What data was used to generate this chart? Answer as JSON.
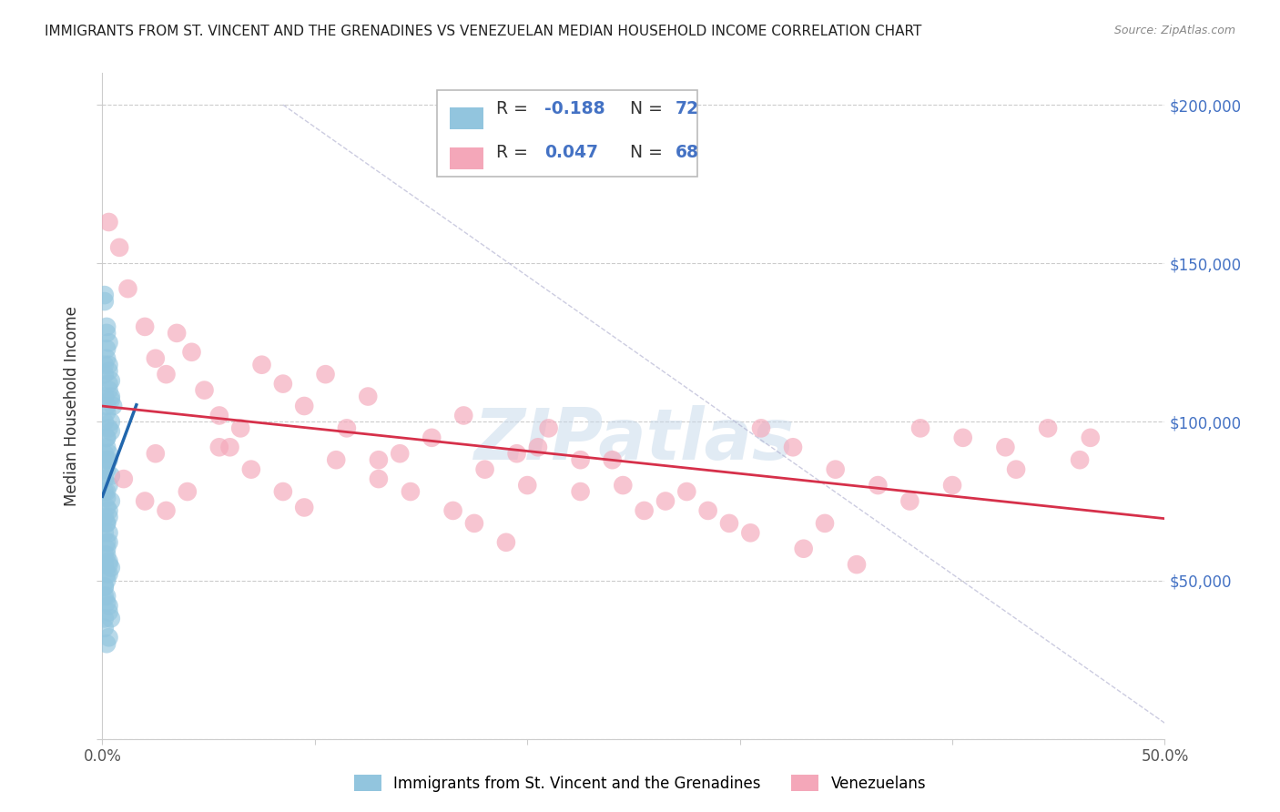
{
  "title": "IMMIGRANTS FROM ST. VINCENT AND THE GRENADINES VS VENEZUELAN MEDIAN HOUSEHOLD INCOME CORRELATION CHART",
  "source": "Source: ZipAtlas.com",
  "ylabel": "Median Household Income",
  "xlim": [
    0.0,
    0.5
  ],
  "ylim": [
    0,
    210000
  ],
  "xtick_positions": [
    0.0,
    0.5
  ],
  "xtick_labels": [
    "0.0%",
    "50.0%"
  ],
  "yticks": [
    0,
    50000,
    100000,
    150000,
    200000
  ],
  "ytick_labels": [
    "",
    "$50,000",
    "$100,000",
    "$150,000",
    "$200,000"
  ],
  "blue_R": -0.188,
  "blue_N": 72,
  "pink_R": 0.047,
  "pink_N": 68,
  "blue_color": "#92c5de",
  "pink_color": "#f4a7b9",
  "blue_line_color": "#2166ac",
  "pink_line_color": "#d6304a",
  "watermark": "ZIPatlas",
  "legend_label_blue": "Immigrants from St. Vincent and the Grenadines",
  "legend_label_pink": "Venezuelans",
  "blue_x": [
    0.002,
    0.003,
    0.003,
    0.004,
    0.004,
    0.001,
    0.002,
    0.003,
    0.005,
    0.002,
    0.001,
    0.002,
    0.003,
    0.004,
    0.002,
    0.001,
    0.003,
    0.002,
    0.004,
    0.001,
    0.002,
    0.003,
    0.001,
    0.002,
    0.004,
    0.001,
    0.003,
    0.002,
    0.001,
    0.003,
    0.002,
    0.004,
    0.001,
    0.002,
    0.003,
    0.001,
    0.002,
    0.003,
    0.002,
    0.001,
    0.003,
    0.002,
    0.001,
    0.002,
    0.003,
    0.004,
    0.001,
    0.002,
    0.003,
    0.001,
    0.002,
    0.003,
    0.001,
    0.002,
    0.004,
    0.001,
    0.002,
    0.003,
    0.001,
    0.002,
    0.003,
    0.002,
    0.001,
    0.003,
    0.002,
    0.001,
    0.002,
    0.003,
    0.004,
    0.001,
    0.002,
    0.003
  ],
  "blue_y": [
    130000,
    125000,
    118000,
    113000,
    107000,
    140000,
    120000,
    116000,
    105000,
    128000,
    138000,
    123000,
    112000,
    108000,
    103000,
    118000,
    110000,
    105000,
    100000,
    115000,
    95000,
    98000,
    108000,
    92000,
    97000,
    100000,
    88000,
    85000,
    90000,
    80000,
    78000,
    75000,
    82000,
    73000,
    70000,
    65000,
    68000,
    62000,
    60000,
    55000,
    52000,
    50000,
    48000,
    58000,
    56000,
    54000,
    45000,
    43000,
    40000,
    38000,
    95000,
    90000,
    85000,
    88000,
    83000,
    78000,
    76000,
    72000,
    70000,
    68000,
    65000,
    62000,
    58000,
    55000,
    52000,
    48000,
    45000,
    42000,
    38000,
    35000,
    30000,
    32000
  ],
  "pink_x": [
    0.003,
    0.008,
    0.012,
    0.02,
    0.025,
    0.03,
    0.035,
    0.042,
    0.048,
    0.055,
    0.065,
    0.075,
    0.085,
    0.095,
    0.105,
    0.115,
    0.125,
    0.14,
    0.155,
    0.17,
    0.18,
    0.195,
    0.21,
    0.225,
    0.24,
    0.255,
    0.275,
    0.295,
    0.31,
    0.325,
    0.345,
    0.365,
    0.385,
    0.405,
    0.425,
    0.445,
    0.465,
    0.01,
    0.02,
    0.03,
    0.04,
    0.055,
    0.07,
    0.085,
    0.095,
    0.11,
    0.13,
    0.145,
    0.165,
    0.175,
    0.19,
    0.205,
    0.225,
    0.245,
    0.265,
    0.285,
    0.305,
    0.33,
    0.355,
    0.38,
    0.4,
    0.43,
    0.46,
    0.025,
    0.06,
    0.13,
    0.2,
    0.34
  ],
  "pink_y": [
    163000,
    155000,
    142000,
    130000,
    120000,
    115000,
    128000,
    122000,
    110000,
    102000,
    98000,
    118000,
    112000,
    105000,
    115000,
    98000,
    108000,
    90000,
    95000,
    102000,
    85000,
    90000,
    98000,
    78000,
    88000,
    72000,
    78000,
    68000,
    98000,
    92000,
    85000,
    80000,
    98000,
    95000,
    92000,
    98000,
    95000,
    82000,
    75000,
    72000,
    78000,
    92000,
    85000,
    78000,
    73000,
    88000,
    82000,
    78000,
    72000,
    68000,
    62000,
    92000,
    88000,
    80000,
    75000,
    72000,
    65000,
    60000,
    55000,
    75000,
    80000,
    85000,
    88000,
    90000,
    92000,
    88000,
    80000,
    68000
  ]
}
